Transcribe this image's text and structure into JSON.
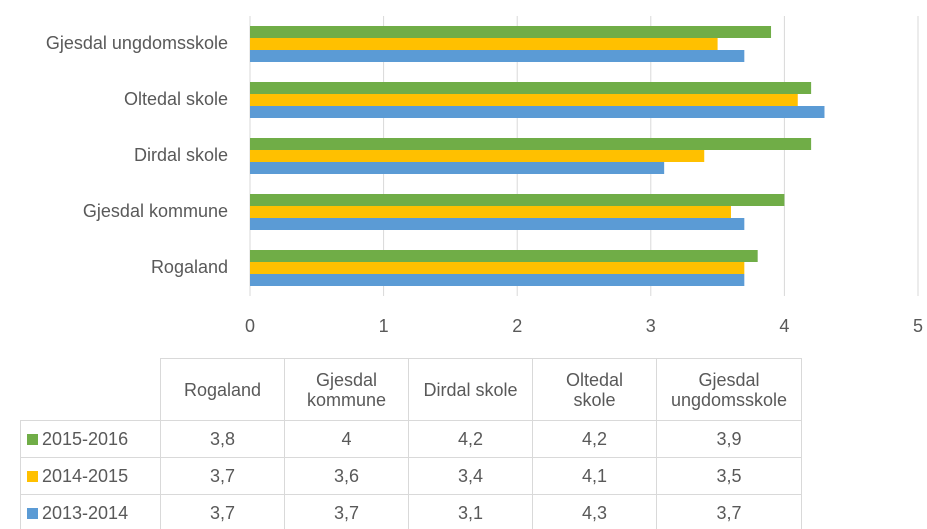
{
  "chart_data": {
    "type": "bar",
    "orientation": "horizontal",
    "categories": [
      "Rogaland",
      "Gjesdal kommune",
      "Dirdal skole",
      "Oltedal skole",
      "Gjesdal ungdomsskole"
    ],
    "series": [
      {
        "name": "2015-2016",
        "color": "#70ad47",
        "values": [
          3.8,
          4,
          4.2,
          4.2,
          3.9
        ],
        "value_labels": [
          "3,8",
          "4",
          "4,2",
          "4,2",
          "3,9"
        ]
      },
      {
        "name": "2014-2015",
        "color": "#ffc000",
        "values": [
          3.7,
          3.6,
          3.4,
          4.1,
          3.5
        ],
        "value_labels": [
          "3,7",
          "3,6",
          "3,4",
          "4,1",
          "3,5"
        ]
      },
      {
        "name": "2013-2014",
        "color": "#5b9bd5",
        "values": [
          3.7,
          3.7,
          3.1,
          4.3,
          3.7
        ],
        "value_labels": [
          "3,7",
          "3,7",
          "3,1",
          "4,3",
          "3,7"
        ]
      }
    ],
    "xlim": [
      0,
      5
    ],
    "xticks": [
      0,
      1,
      2,
      3,
      4,
      5
    ],
    "grid": true
  }
}
